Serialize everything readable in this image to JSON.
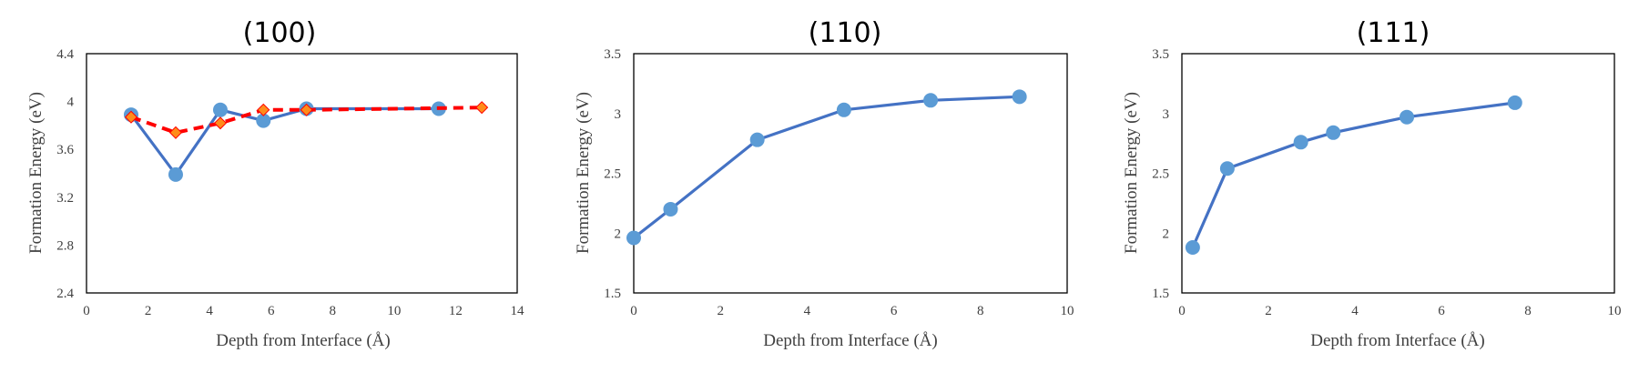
{
  "chart_data": [
    {
      "type": "line",
      "title": "(100)",
      "xlabel": "Depth from Interface (Å)",
      "ylabel": "Formation Energy (eV)",
      "xlim": [
        0,
        14
      ],
      "ylim": [
        2.4,
        4.4
      ],
      "xticks": [
        "0",
        "2",
        "4",
        "6",
        "8",
        "10",
        "12",
        "14"
      ],
      "yticks": [
        "2.4",
        "2.8",
        "3.2",
        "3.6",
        "4",
        "4.4"
      ],
      "grid": false,
      "series": [
        {
          "style": "solid",
          "color": "#4472c4",
          "marker_color": "#5b9bd5",
          "marker": "circle",
          "x": [
            1.45,
            2.9,
            4.35,
            5.75,
            7.15,
            11.45
          ],
          "y": [
            3.89,
            3.39,
            3.93,
            3.84,
            3.94,
            3.94
          ]
        },
        {
          "style": "dashed",
          "color": "#ff0000",
          "marker_color": "#ff8c1a",
          "marker": "diamond",
          "x": [
            1.45,
            2.9,
            4.35,
            5.75,
            7.15,
            12.85
          ],
          "y": [
            3.87,
            3.74,
            3.82,
            3.93,
            3.93,
            3.95
          ]
        }
      ]
    },
    {
      "type": "line",
      "title": "(110)",
      "xlabel": "Depth from Interface (Å)",
      "ylabel": "Formation Energy (eV)",
      "xlim": [
        0,
        10
      ],
      "ylim": [
        1.5,
        3.5
      ],
      "xticks": [
        "0",
        "2",
        "4",
        "6",
        "8",
        "10"
      ],
      "yticks": [
        "1.5",
        "2",
        "2.5",
        "3",
        "3.5"
      ],
      "grid": false,
      "series": [
        {
          "style": "solid",
          "color": "#4472c4",
          "marker_color": "#5b9bd5",
          "marker": "circle",
          "x": [
            0.0,
            0.85,
            2.85,
            4.85,
            6.85,
            8.9
          ],
          "y": [
            1.96,
            2.2,
            2.78,
            3.03,
            3.11,
            3.14
          ]
        }
      ]
    },
    {
      "type": "line",
      "title": "(111)",
      "xlabel": "Depth from Interface (Å)",
      "ylabel": "Formation Energy (eV)",
      "xlim": [
        0,
        10
      ],
      "ylim": [
        1.5,
        3.5
      ],
      "xticks": [
        "0",
        "2",
        "4",
        "6",
        "8",
        "10"
      ],
      "yticks": [
        "1.5",
        "2",
        "2.5",
        "3",
        "3.5"
      ],
      "grid": false,
      "series": [
        {
          "style": "solid",
          "color": "#4472c4",
          "marker_color": "#5b9bd5",
          "marker": "circle",
          "x": [
            0.25,
            1.05,
            2.75,
            3.5,
            5.2,
            7.7
          ],
          "y": [
            1.88,
            2.54,
            2.76,
            2.84,
            2.97,
            3.09
          ]
        }
      ]
    }
  ]
}
